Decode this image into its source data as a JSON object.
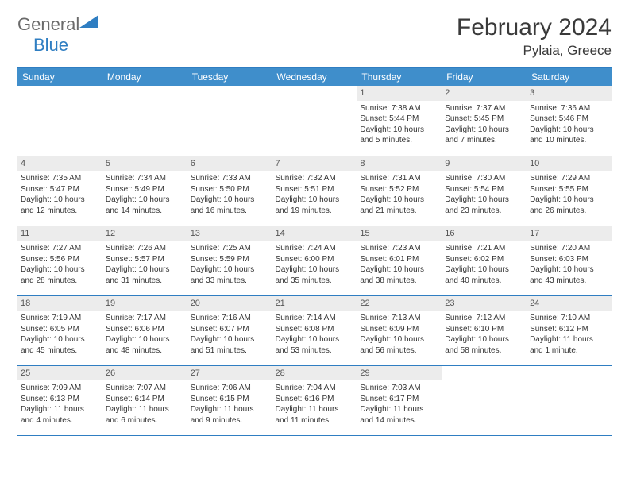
{
  "logo": {
    "part1": "General",
    "part2": "Blue"
  },
  "title": "February 2024",
  "location": "Pylaia, Greece",
  "header_color": "#3f8ecb",
  "border_color": "#2f7ec2",
  "daynum_bg": "#ececec",
  "weekdays": [
    "Sunday",
    "Monday",
    "Tuesday",
    "Wednesday",
    "Thursday",
    "Friday",
    "Saturday"
  ],
  "weeks": [
    [
      null,
      null,
      null,
      null,
      {
        "d": "1",
        "sr": "7:38 AM",
        "ss": "5:44 PM",
        "dl": "10 hours and 5 minutes."
      },
      {
        "d": "2",
        "sr": "7:37 AM",
        "ss": "5:45 PM",
        "dl": "10 hours and 7 minutes."
      },
      {
        "d": "3",
        "sr": "7:36 AM",
        "ss": "5:46 PM",
        "dl": "10 hours and 10 minutes."
      }
    ],
    [
      {
        "d": "4",
        "sr": "7:35 AM",
        "ss": "5:47 PM",
        "dl": "10 hours and 12 minutes."
      },
      {
        "d": "5",
        "sr": "7:34 AM",
        "ss": "5:49 PM",
        "dl": "10 hours and 14 minutes."
      },
      {
        "d": "6",
        "sr": "7:33 AM",
        "ss": "5:50 PM",
        "dl": "10 hours and 16 minutes."
      },
      {
        "d": "7",
        "sr": "7:32 AM",
        "ss": "5:51 PM",
        "dl": "10 hours and 19 minutes."
      },
      {
        "d": "8",
        "sr": "7:31 AM",
        "ss": "5:52 PM",
        "dl": "10 hours and 21 minutes."
      },
      {
        "d": "9",
        "sr": "7:30 AM",
        "ss": "5:54 PM",
        "dl": "10 hours and 23 minutes."
      },
      {
        "d": "10",
        "sr": "7:29 AM",
        "ss": "5:55 PM",
        "dl": "10 hours and 26 minutes."
      }
    ],
    [
      {
        "d": "11",
        "sr": "7:27 AM",
        "ss": "5:56 PM",
        "dl": "10 hours and 28 minutes."
      },
      {
        "d": "12",
        "sr": "7:26 AM",
        "ss": "5:57 PM",
        "dl": "10 hours and 31 minutes."
      },
      {
        "d": "13",
        "sr": "7:25 AM",
        "ss": "5:59 PM",
        "dl": "10 hours and 33 minutes."
      },
      {
        "d": "14",
        "sr": "7:24 AM",
        "ss": "6:00 PM",
        "dl": "10 hours and 35 minutes."
      },
      {
        "d": "15",
        "sr": "7:23 AM",
        "ss": "6:01 PM",
        "dl": "10 hours and 38 minutes."
      },
      {
        "d": "16",
        "sr": "7:21 AM",
        "ss": "6:02 PM",
        "dl": "10 hours and 40 minutes."
      },
      {
        "d": "17",
        "sr": "7:20 AM",
        "ss": "6:03 PM",
        "dl": "10 hours and 43 minutes."
      }
    ],
    [
      {
        "d": "18",
        "sr": "7:19 AM",
        "ss": "6:05 PM",
        "dl": "10 hours and 45 minutes."
      },
      {
        "d": "19",
        "sr": "7:17 AM",
        "ss": "6:06 PM",
        "dl": "10 hours and 48 minutes."
      },
      {
        "d": "20",
        "sr": "7:16 AM",
        "ss": "6:07 PM",
        "dl": "10 hours and 51 minutes."
      },
      {
        "d": "21",
        "sr": "7:14 AM",
        "ss": "6:08 PM",
        "dl": "10 hours and 53 minutes."
      },
      {
        "d": "22",
        "sr": "7:13 AM",
        "ss": "6:09 PM",
        "dl": "10 hours and 56 minutes."
      },
      {
        "d": "23",
        "sr": "7:12 AM",
        "ss": "6:10 PM",
        "dl": "10 hours and 58 minutes."
      },
      {
        "d": "24",
        "sr": "7:10 AM",
        "ss": "6:12 PM",
        "dl": "11 hours and 1 minute."
      }
    ],
    [
      {
        "d": "25",
        "sr": "7:09 AM",
        "ss": "6:13 PM",
        "dl": "11 hours and 4 minutes."
      },
      {
        "d": "26",
        "sr": "7:07 AM",
        "ss": "6:14 PM",
        "dl": "11 hours and 6 minutes."
      },
      {
        "d": "27",
        "sr": "7:06 AM",
        "ss": "6:15 PM",
        "dl": "11 hours and 9 minutes."
      },
      {
        "d": "28",
        "sr": "7:04 AM",
        "ss": "6:16 PM",
        "dl": "11 hours and 11 minutes."
      },
      {
        "d": "29",
        "sr": "7:03 AM",
        "ss": "6:17 PM",
        "dl": "11 hours and 14 minutes."
      },
      null,
      null
    ]
  ],
  "labels": {
    "sunrise": "Sunrise:",
    "sunset": "Sunset:",
    "daylight": "Daylight:"
  }
}
